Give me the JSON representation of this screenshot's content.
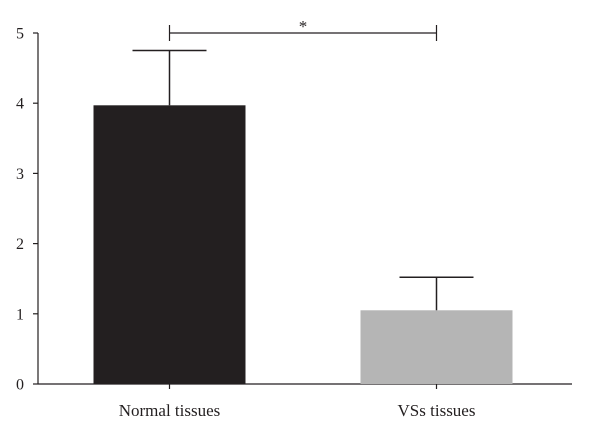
{
  "chart_data": {
    "type": "bar",
    "categories": [
      "Normal tissues",
      "VSs tissues"
    ],
    "values": [
      3.97,
      1.05
    ],
    "error_upper": [
      4.75,
      1.52
    ],
    "bar_colors": [
      "#231f20",
      "#b5b5b5"
    ],
    "ylim": [
      0,
      5
    ],
    "yticks": [
      "0",
      "1",
      "2",
      "3",
      "4",
      "5"
    ],
    "significance": {
      "between": [
        0,
        1
      ],
      "level": 5,
      "label": "*"
    },
    "title": "",
    "xlabel": "",
    "ylabel": "",
    "grid": false
  }
}
